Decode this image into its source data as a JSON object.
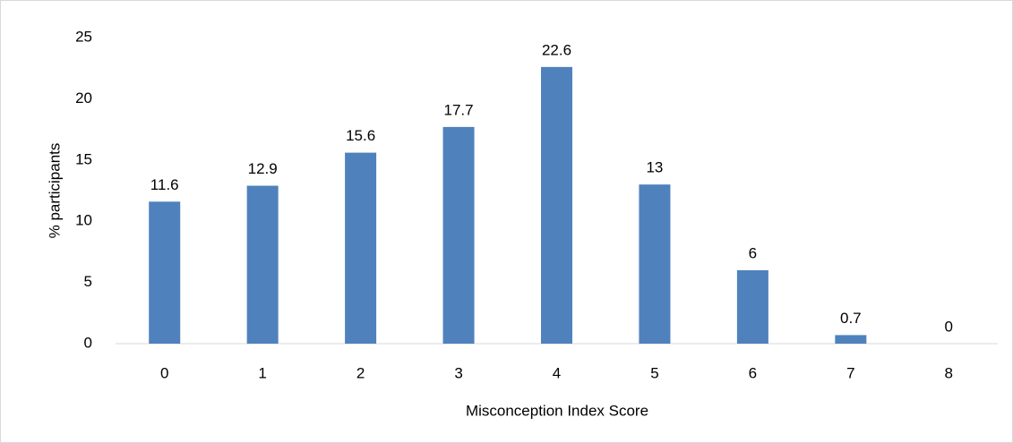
{
  "chart_data": {
    "type": "bar",
    "x_label": "Misconception Index Score",
    "y_label": "% participants",
    "categories": [
      "0",
      "1",
      "2",
      "3",
      "4",
      "5",
      "6",
      "7",
      "8"
    ],
    "values": [
      11.6,
      12.9,
      15.6,
      17.7,
      22.6,
      13,
      6,
      0.7,
      0
    ],
    "color": "#4f81bd",
    "ylim": [
      0,
      25
    ],
    "yticks": [
      0,
      5,
      10,
      15,
      20,
      25
    ],
    "grid": false,
    "data_labels": true
  }
}
